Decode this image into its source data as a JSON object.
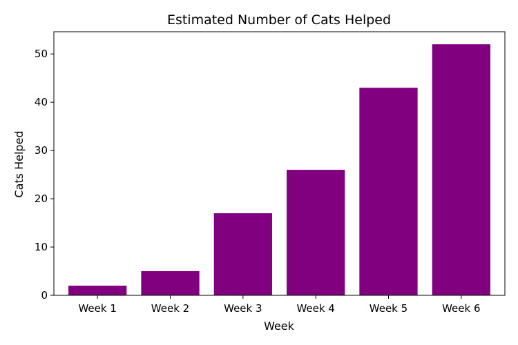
{
  "chart_data": {
    "type": "bar",
    "title": "Estimated Number of Cats Helped",
    "xlabel": "Week",
    "ylabel": "Cats Helped",
    "categories": [
      "Week 1",
      "Week 2",
      "Week 3",
      "Week 4",
      "Week 5",
      "Week 6"
    ],
    "values": [
      2,
      5,
      17,
      26,
      43,
      52
    ],
    "ylim": [
      0,
      54.6
    ],
    "yticks": [
      0,
      10,
      20,
      30,
      40,
      50
    ],
    "grid": false,
    "bar_color": "#800080"
  }
}
